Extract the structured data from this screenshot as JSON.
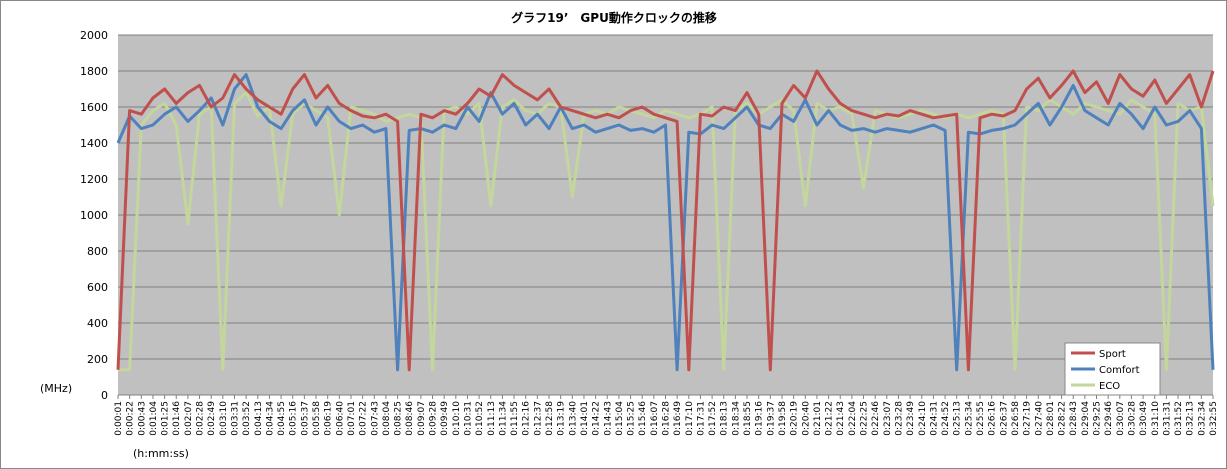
{
  "chart_data": {
    "type": "line",
    "title": "グラフ19’　GPU動作クロックの推移",
    "y_label": "(MHz)",
    "x_label": "(h:mm:ss)",
    "categories": [
      "0:00:01",
      "0:00:22",
      "0:00:43",
      "0:01:04",
      "0:01:25",
      "0:01:46",
      "0:02:07",
      "0:02:28",
      "0:02:49",
      "0:03:10",
      "0:03:31",
      "0:03:52",
      "0:04:13",
      "0:04:34",
      "0:04:55",
      "0:05:16",
      "0:05:37",
      "0:05:58",
      "0:06:19",
      "0:06:40",
      "0:07:01",
      "0:07:22",
      "0:07:43",
      "0:08:04",
      "0:08:25",
      "0:08:46",
      "0:09:07",
      "0:09:28",
      "0:09:49",
      "0:10:10",
      "0:10:31",
      "0:10:52",
      "0:11:13",
      "0:11:34",
      "0:11:55",
      "0:12:16",
      "0:12:37",
      "0:12:58",
      "0:13:19",
      "0:13:40",
      "0:14:01",
      "0:14:22",
      "0:14:43",
      "0:15:04",
      "0:15:25",
      "0:15:46",
      "0:16:07",
      "0:16:28",
      "0:16:49",
      "0:17:10",
      "0:17:31",
      "0:17:52",
      "0:18:13",
      "0:18:34",
      "0:18:55",
      "0:19:16",
      "0:19:37",
      "0:19:58",
      "0:20:19",
      "0:20:40",
      "0:21:01",
      "0:21:22",
      "0:21:43",
      "0:22:04",
      "0:22:25",
      "0:22:46",
      "0:23:07",
      "0:23:28",
      "0:23:49",
      "0:24:10",
      "0:24:31",
      "0:24:52",
      "0:25:13",
      "0:25:34",
      "0:25:55",
      "0:26:16",
      "0:26:37",
      "0:26:58",
      "0:27:19",
      "0:27:40",
      "0:28:01",
      "0:28:22",
      "0:28:43",
      "0:29:04",
      "0:29:25",
      "0:29:46",
      "0:30:07",
      "0:30:28",
      "0:30:49",
      "0:31:10",
      "0:31:31",
      "0:31:52",
      "0:32:13",
      "0:32:34",
      "0:32:55"
    ],
    "series": [
      {
        "name": "Sport",
        "color": "#c0504d",
        "values": [
          140,
          1580,
          1560,
          1650,
          1700,
          1620,
          1680,
          1720,
          1600,
          1650,
          1780,
          1700,
          1640,
          1600,
          1560,
          1700,
          1780,
          1650,
          1720,
          1620,
          1580,
          1550,
          1540,
          1560,
          1520,
          140,
          1560,
          1540,
          1580,
          1560,
          1620,
          1700,
          1660,
          1780,
          1720,
          1680,
          1640,
          1700,
          1600,
          1580,
          1560,
          1540,
          1560,
          1540,
          1580,
          1600,
          1560,
          1540,
          1520,
          140,
          1560,
          1550,
          1600,
          1580,
          1680,
          1560,
          140,
          1620,
          1720,
          1650,
          1800,
          1700,
          1620,
          1580,
          1560,
          1540,
          1560,
          1550,
          1580,
          1560,
          1540,
          1550,
          1560,
          140,
          1540,
          1560,
          1550,
          1580,
          1700,
          1760,
          1650,
          1720,
          1800,
          1680,
          1740,
          1620,
          1780,
          1700,
          1660,
          1750,
          1620,
          1700,
          1780,
          1600,
          1800
        ]
      },
      {
        "name": "Comfort",
        "color": "#4f81bd",
        "values": [
          1400,
          1550,
          1480,
          1500,
          1560,
          1600,
          1520,
          1580,
          1650,
          1500,
          1700,
          1780,
          1600,
          1520,
          1480,
          1580,
          1640,
          1500,
          1600,
          1520,
          1480,
          1500,
          1460,
          1480,
          140,
          1470,
          1480,
          1460,
          1500,
          1480,
          1600,
          1520,
          1680,
          1560,
          1620,
          1500,
          1560,
          1480,
          1600,
          1480,
          1500,
          1460,
          1480,
          1500,
          1470,
          1480,
          1460,
          1500,
          140,
          1460,
          1450,
          1500,
          1480,
          1540,
          1600,
          1500,
          1480,
          1560,
          1520,
          1640,
          1500,
          1580,
          1500,
          1470,
          1480,
          1460,
          1480,
          1470,
          1460,
          1480,
          1500,
          1470,
          140,
          1460,
          1450,
          1470,
          1480,
          1500,
          1560,
          1620,
          1500,
          1600,
          1720,
          1580,
          1540,
          1500,
          1620,
          1560,
          1480,
          1600,
          1500,
          1520,
          1580,
          1480,
          140
        ]
      },
      {
        "name": "ECO",
        "color": "#c3d69b",
        "values": [
          140,
          140,
          1500,
          1580,
          1620,
          1500,
          950,
          1560,
          1600,
          140,
          1620,
          1680,
          1550,
          1600,
          1050,
          1560,
          1620,
          1580,
          1540,
          1000,
          1600,
          1580,
          1560,
          1520,
          1540,
          1560,
          1540,
          140,
          1580,
          1600,
          1560,
          1620,
          1050,
          1600,
          1640,
          1580,
          1560,
          1620,
          1600,
          1100,
          1560,
          1580,
          1560,
          1600,
          1580,
          1560,
          1540,
          1580,
          1560,
          1540,
          1560,
          1600,
          140,
          1580,
          1620,
          1560,
          1600,
          1640,
          1580,
          1050,
          1620,
          1580,
          1600,
          1560,
          1150,
          1580,
          1560,
          1540,
          1560,
          1580,
          1560,
          1540,
          1560,
          1540,
          1560,
          1580,
          1560,
          140,
          1600,
          1580,
          1640,
          1600,
          1560,
          1620,
          1600,
          1580,
          1560,
          1640,
          1600,
          1560,
          140,
          1620,
          1580,
          1600,
          1050
        ]
      }
    ],
    "ylim": [
      0,
      2000
    ],
    "yticks": [
      0,
      200,
      400,
      600,
      800,
      1000,
      1200,
      1400,
      1600,
      1800,
      2000
    ],
    "grid": true,
    "legend": "lower right"
  }
}
